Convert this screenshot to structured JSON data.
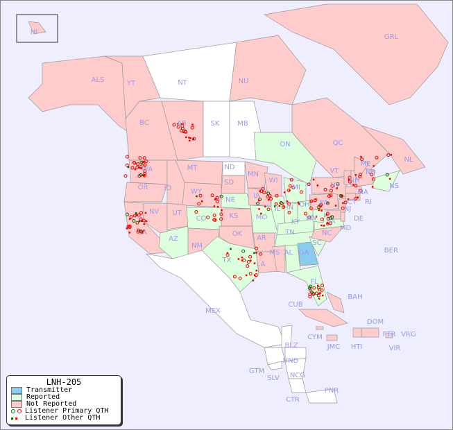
{
  "title": "LNH-205",
  "colors": {
    "background": "#eeeeff",
    "transmitter": "#88ccee",
    "reported": "#ddffdd",
    "not_reported": "#ffcccc",
    "unlisted": "#ffffff",
    "listener_primary_a": "#006600",
    "listener_primary_b": "#ee0000",
    "listener_other_a": "#006600",
    "listener_other_b": "#ee0000",
    "label": "#9a9ae8"
  },
  "legend": {
    "title": "LNH-205",
    "items": [
      {
        "label": "Transmitter",
        "type": "swatch",
        "color": "#88ccee"
      },
      {
        "label": "Reported",
        "type": "swatch",
        "color": "#ddffdd"
      },
      {
        "label": "Not Reported",
        "type": "swatch",
        "color": "#ffcccc"
      },
      {
        "label": "Listener Primary QTH",
        "type": "circle"
      },
      {
        "label": "Listener Other QTH",
        "type": "square"
      }
    ]
  },
  "regions": {
    "transmitter": [
      "GA"
    ],
    "reported": [
      "ON",
      "AZ",
      "CO",
      "TX",
      "NE",
      "MO",
      "IL",
      "IN",
      "MI",
      "OH",
      "KY",
      "TN",
      "AL",
      "SC",
      "FL",
      "NS",
      "VA",
      "WV"
    ],
    "not_reported": [
      "ALS",
      "YT",
      "NU",
      "GRL",
      "BC",
      "AB",
      "QC",
      "NL",
      "NB",
      "WA",
      "OR",
      "CA",
      "ID",
      "NV",
      "MT",
      "WY",
      "UT",
      "NM",
      "SD",
      "KS",
      "OK",
      "MN",
      "IA",
      "AR",
      "LA",
      "WI",
      "MS",
      "NC",
      "PA",
      "NY",
      "VT",
      "NH",
      "MA",
      "CT",
      "RI",
      "NJ",
      "DE",
      "MD",
      "ME",
      "HI",
      "CUB",
      "BAH",
      "DOM",
      "PTR",
      "HTI",
      "JMC",
      "CYM"
    ],
    "unlisted": [
      "NT",
      "SK",
      "MB",
      "ND",
      "MEX",
      "BLZ",
      "GTM",
      "HND",
      "SLV",
      "NCG",
      "CTR",
      "PNR",
      "BER",
      "VRG",
      "VIR"
    ]
  },
  "labels": [
    "HI",
    "ALS",
    "YT",
    "NT",
    "NU",
    "GRL",
    "BC",
    "AB",
    "SK",
    "MB",
    "ON",
    "QC",
    "NL",
    "NB",
    "NS",
    "WA",
    "OR",
    "CA",
    "ID",
    "NV",
    "MT",
    "WY",
    "UT",
    "AZ",
    "CO",
    "NM",
    "ND",
    "SD",
    "NE",
    "KS",
    "OK",
    "TX",
    "MN",
    "IA",
    "MO",
    "AR",
    "LA",
    "WI",
    "IL",
    "MI",
    "IN",
    "OH",
    "KY",
    "TN",
    "MS",
    "AL",
    "GA",
    "FL",
    "SC",
    "NC",
    "VA",
    "WV",
    "PA",
    "NY",
    "VT",
    "NH",
    "MA",
    "CT",
    "RI",
    "NJ",
    "DE",
    "MD",
    "ME",
    "MEX",
    "CUB",
    "BAH",
    "BER",
    "DOM",
    "PTR",
    "VRG",
    "VIR",
    "HTI",
    "JMC",
    "CYM",
    "BLZ",
    "GTM",
    "HND",
    "SLV",
    "NCG",
    "CTR",
    "PNR"
  ]
}
